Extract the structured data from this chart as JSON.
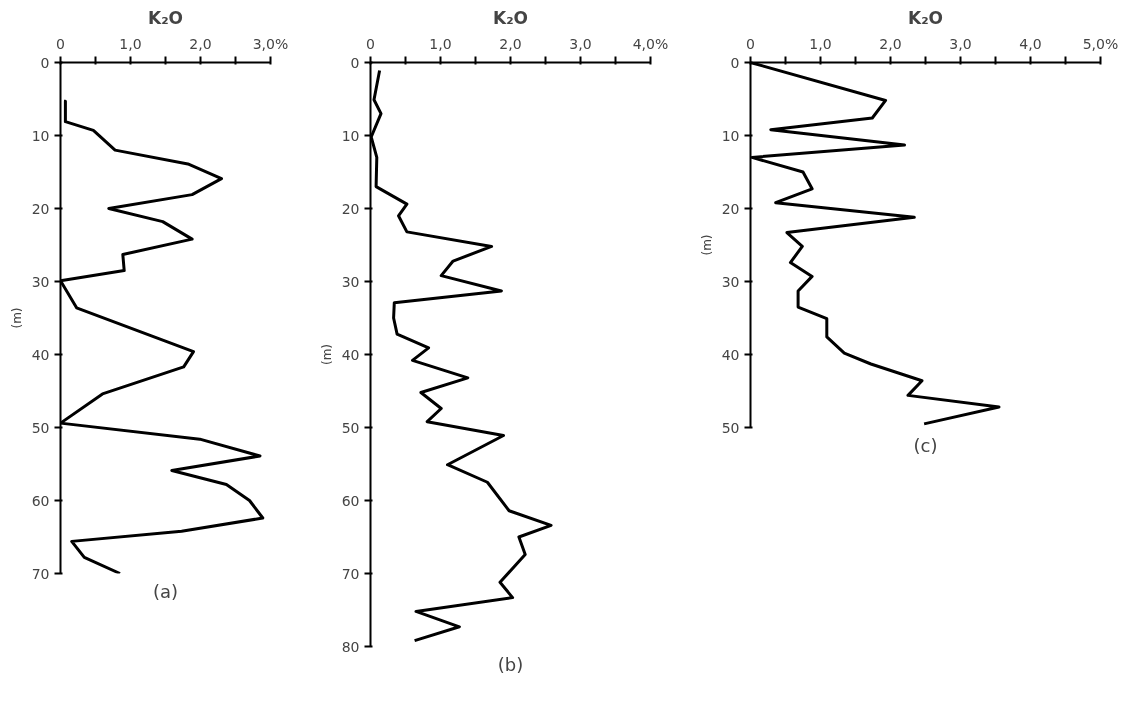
{
  "chart_data": [
    {
      "type": "line",
      "title": "K₂O",
      "ylabel": "(m)",
      "annotations": [
        "(a)"
      ],
      "color": "#000000",
      "line_style": "solid",
      "x": [
        0.05,
        0.07,
        0.07,
        0.47,
        0.78,
        1.82,
        2.3,
        1.88,
        0.69,
        1.46,
        1.88,
        0.89,
        0.91,
        0,
        0.23,
        1.9,
        1.76,
        0.6,
        0,
        1.99,
        2.85,
        1.59,
        2.37,
        2.7,
        2.89,
        1.73,
        0.16,
        0.34,
        0.85
      ],
      "values": [
        5.3,
        5.3,
        8.1,
        9.3,
        12,
        13.9,
        15.9,
        18.1,
        20,
        21.8,
        24.2,
        26.3,
        28.5,
        29.9,
        33.6,
        39.6,
        41.7,
        45.4,
        49.4,
        51.6,
        53.9,
        55.9,
        57.8,
        60,
        62.4,
        64.2,
        65.6,
        67.8,
        70
      ],
      "xlim": [
        0,
        3
      ],
      "ylim": [
        70,
        0
      ],
      "xticks": [
        0,
        {
          "value": 0.5,
          "label": null
        },
        {
          "value": 1,
          "label": "1,0"
        },
        {
          "value": 1.5,
          "label": null
        },
        {
          "value": 2,
          "label": "2,0"
        },
        {
          "value": 2.5,
          "label": null
        },
        {
          "value": 3,
          "label": "3,0%"
        }
      ],
      "yticks": [
        0,
        10,
        20,
        30,
        40,
        50,
        60,
        70
      ]
    },
    {
      "type": "line",
      "title": "K₂O",
      "ylabel": "(m)",
      "annotations": [
        "(b)"
      ],
      "color": "#000000",
      "line_style": "solid",
      "x": [
        0.13,
        0.05,
        0.15,
        0.01,
        0.09,
        0.08,
        0.52,
        0.4,
        0.52,
        1.73,
        1.18,
        1.01,
        1.87,
        0.34,
        0.33,
        0.38,
        0.83,
        0.6,
        1.39,
        0.72,
        1.01,
        0.81,
        1.9,
        1.1,
        1.67,
        1.98,
        2.58,
        2.12,
        2.21,
        1.85,
        2.03,
        0.65,
        1.27,
        0.63
      ],
      "values": [
        1.1,
        5.1,
        7,
        10.2,
        13,
        17,
        19.4,
        21,
        23.2,
        25.2,
        27.2,
        29.2,
        31.3,
        32.9,
        35,
        37.2,
        39.1,
        40.8,
        43.2,
        45.2,
        47.4,
        49.2,
        51.1,
        55.1,
        57.5,
        61.4,
        63.4,
        65,
        67.4,
        71.2,
        73.3,
        75.2,
        77.3,
        79.2
      ],
      "xlim": [
        0,
        4
      ],
      "ylim": [
        80,
        0
      ],
      "xticks": [
        0,
        {
          "value": 0.5,
          "label": null
        },
        {
          "value": 1,
          "label": "1,0"
        },
        {
          "value": 1.5,
          "label": null
        },
        {
          "value": 2,
          "label": "2,0"
        },
        {
          "value": 2.5,
          "label": null
        },
        {
          "value": 3,
          "label": "3,0"
        },
        {
          "value": 3.5,
          "label": null
        },
        {
          "value": 4,
          "label": "4,0%"
        }
      ],
      "yticks": [
        0,
        10,
        20,
        30,
        40,
        50,
        60,
        70,
        80
      ]
    },
    {
      "type": "line",
      "title": "K₂O",
      "ylabel": "(m)",
      "annotations": [
        "(c)"
      ],
      "color": "#000000",
      "line_style": "solid",
      "x": [
        0,
        1.93,
        1.74,
        0.29,
        2.2,
        0.02,
        0.75,
        0.88,
        0.36,
        2.34,
        0.52,
        0.74,
        0.57,
        0.88,
        0.68,
        0.68,
        1.09,
        1.09,
        1.34,
        1.72,
        2.45,
        2.25,
        3.55,
        2.48
      ],
      "values": [
        0,
        5.2,
        7.6,
        9.2,
        11.3,
        13,
        15,
        17.3,
        19.2,
        21.2,
        23.3,
        25.2,
        27.4,
        29.3,
        31.3,
        33.5,
        35.1,
        37.6,
        39.8,
        41.3,
        43.6,
        45.6,
        47.2,
        49.5
      ],
      "xlim": [
        0,
        5
      ],
      "ylim": [
        50,
        0
      ],
      "xticks": [
        0,
        {
          "value": 0.5,
          "label": null
        },
        {
          "value": 1,
          "label": "1,0"
        },
        {
          "value": 1.5,
          "label": null
        },
        {
          "value": 2,
          "label": "2,0"
        },
        {
          "value": 2.5,
          "label": null
        },
        {
          "value": 3,
          "label": "3,0"
        },
        {
          "value": 3.5,
          "label": null
        },
        {
          "value": 4,
          "label": "4,0"
        },
        {
          "value": 4.5,
          "label": null
        },
        {
          "value": 5,
          "label": "5,0%"
        }
      ],
      "yticks": [
        0,
        10,
        20,
        30,
        40,
        50
      ]
    }
  ]
}
